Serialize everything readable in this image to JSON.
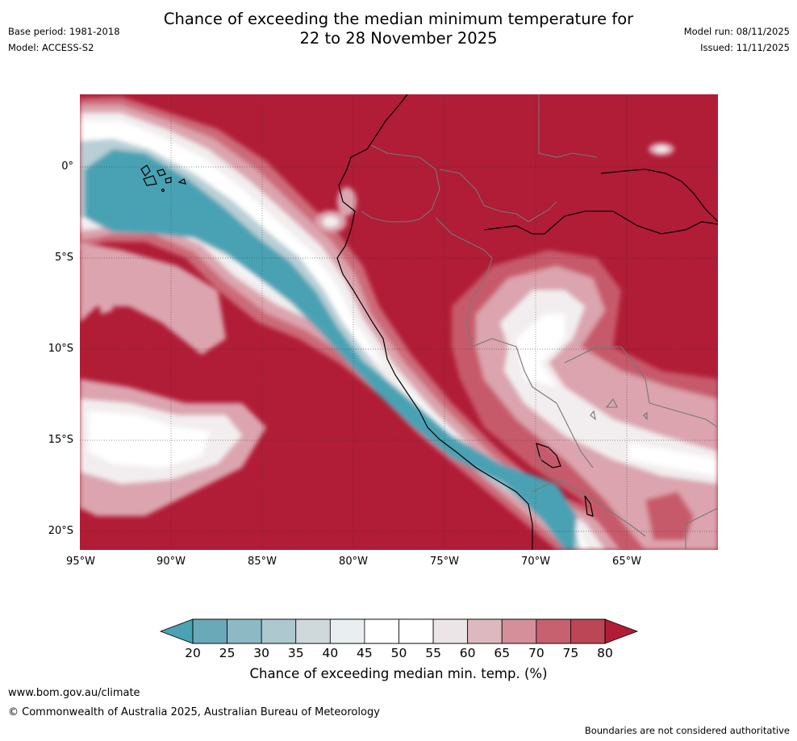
{
  "header": {
    "title_line1": "Chance of exceeding the median minimum temperature for",
    "title_line2": "22 to 28 November 2025",
    "base_period": "Base period: 1981-2018",
    "model": "Model: ACCESS-S2",
    "model_run": "Model run: 08/11/2025",
    "issued": "Issued: 11/11/2025"
  },
  "map": {
    "region": "Western South America and adjacent Pacific Ocean",
    "lat_labels": [
      "0°",
      "5°S",
      "10°S",
      "15°S",
      "20°S"
    ],
    "lon_labels": [
      "95°W",
      "90°W",
      "85°W",
      "80°W",
      "75°W",
      "70°W",
      "65°W"
    ],
    "background_color": "#b11c36"
  },
  "colorbar": {
    "ticks": [
      "20",
      "25",
      "30",
      "35",
      "40",
      "45",
      "50",
      "55",
      "60",
      "65",
      "70",
      "75",
      "80"
    ],
    "colors": [
      "#4aa2b4",
      "#6aa9b8",
      "#8cb9c3",
      "#adc8ce",
      "#cfd9dc",
      "#e9eff1",
      "#ffffff",
      "#ffffff",
      "#ebe5e7",
      "#ddb8bf",
      "#d48f9a",
      "#c7606f",
      "#bc4556",
      "#b11c36"
    ],
    "title": "Chance of exceeding median min. temp. (%)"
  },
  "footer": {
    "website": "www.bom.gov.au/climate",
    "copyright": "© Commonwealth of Australia 2025, Australian Bureau of Meteorology",
    "disclaimer": "Boundaries are not considered authoritative"
  }
}
